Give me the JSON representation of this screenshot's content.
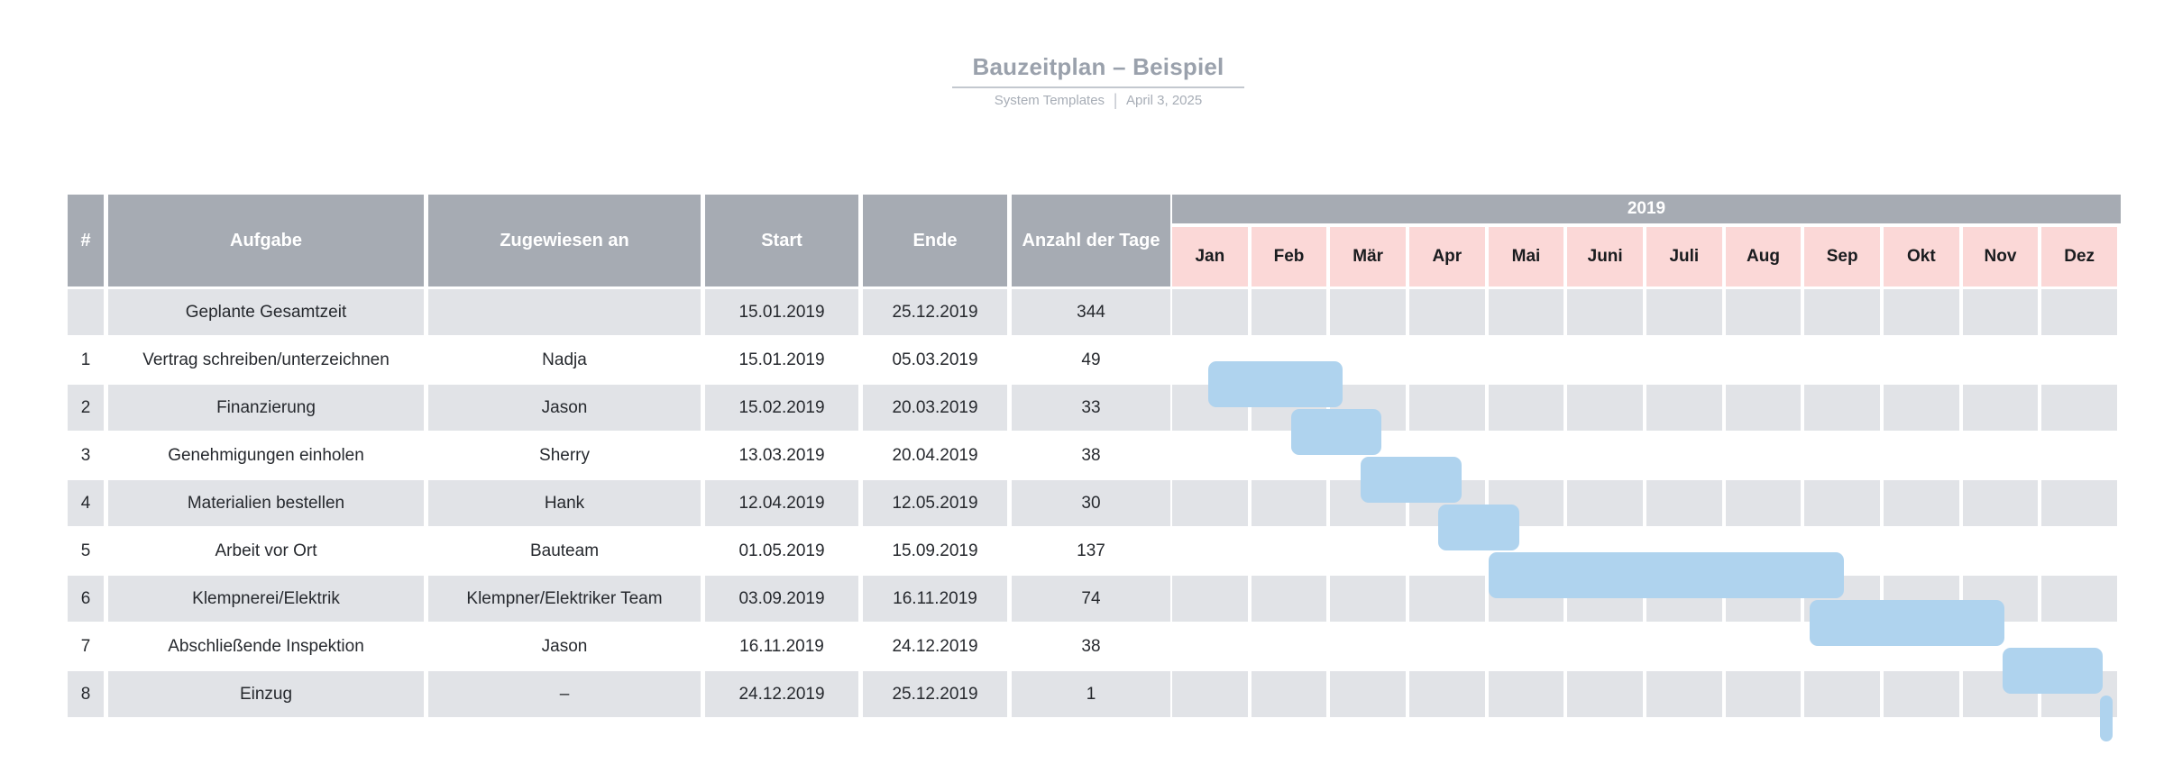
{
  "title": "Bauzeitplan – Beispiel",
  "subtitle": {
    "source": "System Templates",
    "separator": "|",
    "date": "April 3, 2025"
  },
  "colors": {
    "header_gray": "#a6abb3",
    "month_pink": "#fbd8d7",
    "row_gray": "#e1e3e7",
    "bar_blue": "#afd3ee",
    "title_text": "#9aa1ac",
    "subtitle_text": "#a7adb6",
    "body_text": "#26292e"
  },
  "table": {
    "columns": [
      "#",
      "Aufgabe",
      "Zugewiesen an",
      "Start",
      "Ende",
      "Anzahl der Tage"
    ],
    "rows": [
      {
        "num": "",
        "task": "Geplante Gesamtzeit",
        "assigned": "",
        "start": "15.01.2019",
        "end": "25.12.2019",
        "days": "344"
      },
      {
        "num": "1",
        "task": "Vertrag schreiben/unterzeichnen",
        "assigned": "Nadja",
        "start": "15.01.2019",
        "end": "05.03.2019",
        "days": "49"
      },
      {
        "num": "2",
        "task": "Finanzierung",
        "assigned": "Jason",
        "start": "15.02.2019",
        "end": "20.03.2019",
        "days": "33"
      },
      {
        "num": "3",
        "task": "Genehmigungen einholen",
        "assigned": "Sherry",
        "start": "13.03.2019",
        "end": "20.04.2019",
        "days": "38"
      },
      {
        "num": "4",
        "task": "Materialien bestellen",
        "assigned": "Hank",
        "start": "12.04.2019",
        "end": "12.05.2019",
        "days": "30"
      },
      {
        "num": "5",
        "task": "Arbeit vor Ort",
        "assigned": "Bauteam",
        "start": "01.05.2019",
        "end": "15.09.2019",
        "days": "137"
      },
      {
        "num": "6",
        "task": "Klempnerei/Elektrik",
        "assigned": "Klempner/Elektriker Team",
        "start": "03.09.2019",
        "end": "16.11.2019",
        "days": "74"
      },
      {
        "num": "7",
        "task": "Abschließende Inspektion",
        "assigned": "Jason",
        "start": "16.11.2019",
        "end": "24.12.2019",
        "days": "38"
      },
      {
        "num": "8",
        "task": "Einzug",
        "assigned": "–",
        "start": "24.12.2019",
        "end": "25.12.2019",
        "days": "1"
      }
    ]
  },
  "timeline": {
    "year": "2019",
    "months": [
      "Jan",
      "Feb",
      "Mär",
      "Apr",
      "Mai",
      "Juni",
      "Juli",
      "Aug",
      "Sep",
      "Okt",
      "Nov",
      "Dez"
    ]
  },
  "chart_data": {
    "type": "bar",
    "subtype": "gantt",
    "title": "Bauzeitplan – Beispiel",
    "year": 2019,
    "x_axis": {
      "unit": "months",
      "ticks": [
        "Jan",
        "Feb",
        "Mär",
        "Apr",
        "Mai",
        "Juni",
        "Juli",
        "Aug",
        "Sep",
        "Okt",
        "Nov",
        "Dez"
      ]
    },
    "total": {
      "label": "Geplante Gesamtzeit",
      "start": "15.01.2019",
      "end": "25.12.2019",
      "days": 344
    },
    "series": [
      {
        "name": "Vertrag schreiben/unterzeichnen",
        "assigned": "Nadja",
        "start": "15.01.2019",
        "end": "05.03.2019",
        "days": 49
      },
      {
        "name": "Finanzierung",
        "assigned": "Jason",
        "start": "15.02.2019",
        "end": "20.03.2019",
        "days": 33
      },
      {
        "name": "Genehmigungen einholen",
        "assigned": "Sherry",
        "start": "13.03.2019",
        "end": "20.04.2019",
        "days": 38
      },
      {
        "name": "Materialien bestellen",
        "assigned": "Hank",
        "start": "12.04.2019",
        "end": "12.05.2019",
        "days": 30
      },
      {
        "name": "Arbeit vor Ort",
        "assigned": "Bauteam",
        "start": "01.05.2019",
        "end": "15.09.2019",
        "days": 137
      },
      {
        "name": "Klempnerei/Elektrik",
        "assigned": "Klempner/Elektriker Team",
        "start": "03.09.2019",
        "end": "16.11.2019",
        "days": 74
      },
      {
        "name": "Abschließende Inspektion",
        "assigned": "Jason",
        "start": "16.11.2019",
        "end": "24.12.2019",
        "days": 38
      },
      {
        "name": "Einzug",
        "assigned": "–",
        "start": "24.12.2019",
        "end": "25.12.2019",
        "days": 1
      }
    ],
    "bar_color": "#afd3ee",
    "grid": "monthly columns on alternating gray rows",
    "legend": "none"
  }
}
